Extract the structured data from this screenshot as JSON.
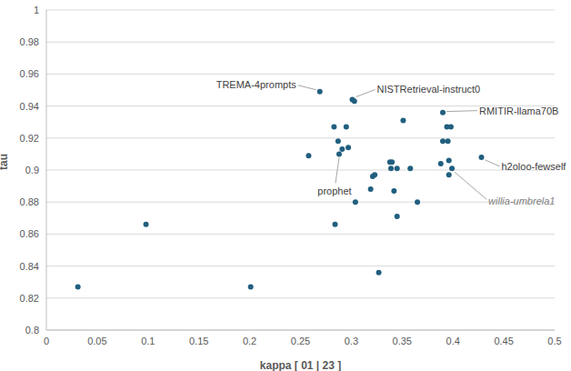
{
  "chart_data": {
    "type": "scatter",
    "x_label": "kappa [ 01 | 23 ]",
    "y_label": "tau",
    "color": "#215f7f",
    "grid": true,
    "xlim": [
      0,
      0.5
    ],
    "xticks": [
      0,
      0.05,
      0.1,
      0.15,
      0.2,
      0.25,
      0.3,
      0.35,
      0.4,
      0.45,
      0.5
    ],
    "ylim": [
      0.8,
      1
    ],
    "yticks": [
      0.8,
      0.82,
      0.84,
      0.86,
      0.88,
      0.9,
      0.92,
      0.94,
      0.96,
      0.98,
      1
    ],
    "x": [
      0.031,
      0.098,
      0.201,
      0.269,
      0.301,
      0.303,
      0.283,
      0.295,
      0.287,
      0.291,
      0.297,
      0.258,
      0.288,
      0.284,
      0.304,
      0.319,
      0.321,
      0.323,
      0.327,
      0.338,
      0.339,
      0.34,
      0.345,
      0.342,
      0.345,
      0.351,
      0.358,
      0.365,
      0.39,
      0.39,
      0.394,
      0.398,
      0.395,
      0.388,
      0.396,
      0.399,
      0.396,
      0.428
    ],
    "values": [
      0.827,
      0.866,
      0.827,
      0.949,
      0.944,
      0.943,
      0.927,
      0.927,
      0.918,
      0.913,
      0.914,
      0.909,
      0.91,
      0.866,
      0.88,
      0.888,
      0.896,
      0.897,
      0.836,
      0.905,
      0.901,
      0.905,
      0.901,
      0.887,
      0.871,
      0.931,
      0.901,
      0.88,
      0.936,
      0.918,
      0.927,
      0.927,
      0.918,
      0.904,
      0.906,
      0.901,
      0.897,
      0.908
    ],
    "annotations": [
      {
        "text": "TREMA-4prompts",
        "x": 0.269,
        "y": 0.949
      },
      {
        "text": "NISTRetrieval-instruct0",
        "x": 0.301,
        "y": 0.944
      },
      {
        "text": "RMITIR-llama70B",
        "x": 0.39,
        "y": 0.936
      },
      {
        "text": "h2oloo-fewself",
        "x": 0.428,
        "y": 0.908
      },
      {
        "text": "prophet",
        "x": 0.288,
        "y": 0.91
      },
      {
        "text": "willia-umbrela1",
        "x": 0.399,
        "y": 0.901
      }
    ]
  }
}
